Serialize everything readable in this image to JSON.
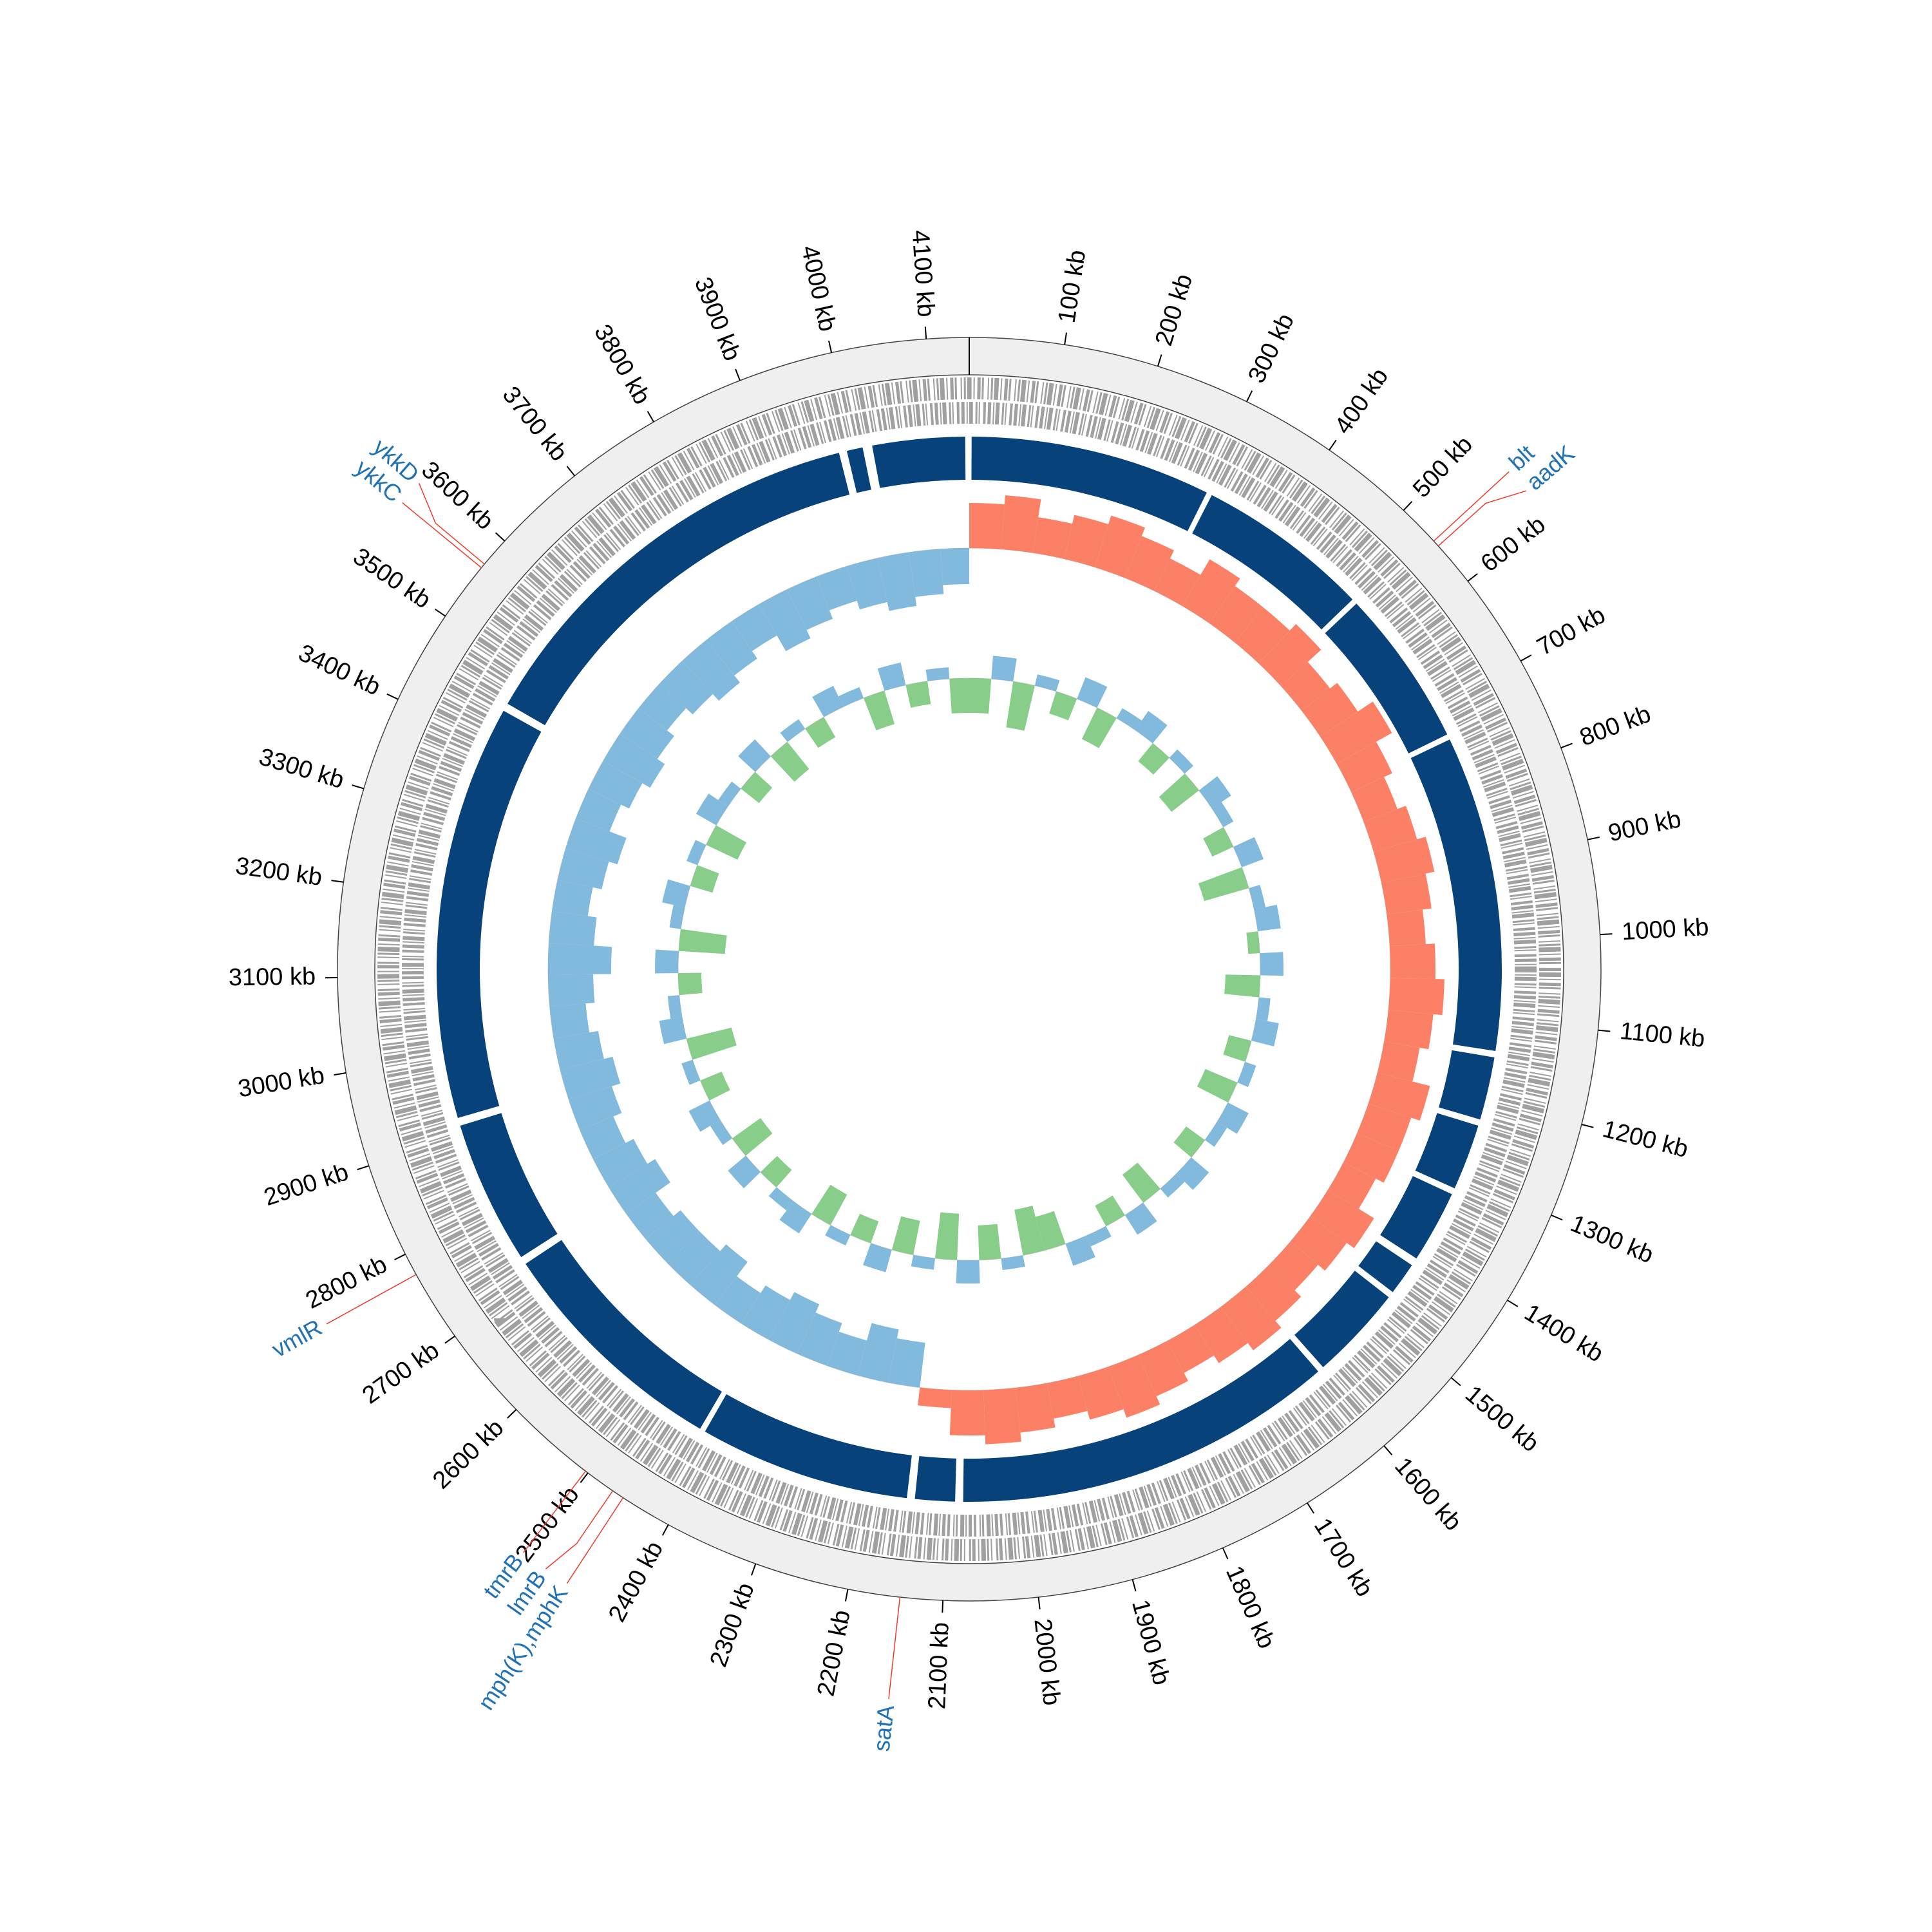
{
  "chart_data": {
    "type": "circular-genome",
    "xlim": [
      0,
      4145
    ],
    "xticks": [
      {
        "value": 100,
        "label": "100 kb"
      },
      {
        "value": 200,
        "label": "200 kb"
      },
      {
        "value": 300,
        "label": "300 kb"
      },
      {
        "value": 400,
        "label": "400 kb"
      },
      {
        "value": 500,
        "label": "500 kb"
      },
      {
        "value": 600,
        "label": "600 kb"
      },
      {
        "value": 700,
        "label": "700 kb"
      },
      {
        "value": 800,
        "label": "800 kb"
      },
      {
        "value": 900,
        "label": "900 kb"
      },
      {
        "value": 1000,
        "label": "1000 kb"
      },
      {
        "value": 1100,
        "label": "1100 kb"
      },
      {
        "value": 1200,
        "label": "1200 kb"
      },
      {
        "value": 1300,
        "label": "1300 kb"
      },
      {
        "value": 1400,
        "label": "1400 kb"
      },
      {
        "value": 1500,
        "label": "1500 kb"
      },
      {
        "value": 1600,
        "label": "1600 kb"
      },
      {
        "value": 1700,
        "label": "1700 kb"
      },
      {
        "value": 1800,
        "label": "1800 kb"
      },
      {
        "value": 1900,
        "label": "1900 kb"
      },
      {
        "value": 2000,
        "label": "2000 kb"
      },
      {
        "value": 2100,
        "label": "2100 kb"
      },
      {
        "value": 2200,
        "label": "2200 kb"
      },
      {
        "value": 2300,
        "label": "2300 kb"
      },
      {
        "value": 2400,
        "label": "2400 kb"
      },
      {
        "value": 2500,
        "label": "2500 kb"
      },
      {
        "value": 2600,
        "label": "2600 kb"
      },
      {
        "value": 2700,
        "label": "2700 kb"
      },
      {
        "value": 2800,
        "label": "2800 kb"
      },
      {
        "value": 2900,
        "label": "2900 kb"
      },
      {
        "value": 3000,
        "label": "3000 kb"
      },
      {
        "value": 3100,
        "label": "3100 kb"
      },
      {
        "value": 3200,
        "label": "3200 kb"
      },
      {
        "value": 3300,
        "label": "3300 kb"
      },
      {
        "value": 3400,
        "label": "3400 kb"
      },
      {
        "value": 3500,
        "label": "3500 kb"
      },
      {
        "value": 3600,
        "label": "3600 kb"
      },
      {
        "value": 3700,
        "label": "3700 kb"
      },
      {
        "value": 3800,
        "label": "3800 kb"
      },
      {
        "value": 3900,
        "label": "3900 kb"
      },
      {
        "value": 4000,
        "label": "4000 kb"
      },
      {
        "value": 4100,
        "label": "4100 kb"
      }
    ],
    "blocks": {
      "color": "#08427b",
      "segments": [
        [
          3,
          305
        ],
        [
          312,
          530
        ],
        [
          537,
          735
        ],
        [
          742,
          1138
        ],
        [
          1146,
          1225
        ],
        [
          1233,
          1316
        ],
        [
          1324,
          1415
        ],
        [
          1425,
          1466
        ],
        [
          1474,
          1593
        ],
        [
          1601,
          2080
        ],
        [
          2090,
          2140
        ],
        [
          2150,
          2415
        ],
        [
          2422,
          2722
        ],
        [
          2732,
          2912
        ],
        [
          2922,
          3443
        ],
        [
          3453,
          3982
        ],
        [
          3992,
          4012
        ],
        [
          4024,
          4140
        ]
      ]
    },
    "gc_skew": {
      "positive_color": "#fb6a4a",
      "negative_color": "#6baed6",
      "x": [
        0,
        50,
        100,
        150,
        200,
        250,
        300,
        350,
        400,
        450,
        500,
        550,
        600,
        650,
        700,
        750,
        800,
        850,
        900,
        950,
        1000,
        1050,
        1100,
        1150,
        1200,
        1250,
        1300,
        1350,
        1400,
        1450,
        1500,
        1550,
        1600,
        1650,
        1700,
        1750,
        1800,
        1850,
        1900,
        1950,
        2000,
        2050,
        2100,
        2150,
        2200,
        2250,
        2300,
        2350,
        2400,
        2450,
        2500,
        2550,
        2600,
        2650,
        2700,
        2750,
        2800,
        2850,
        2900,
        2950,
        3000,
        3050,
        3100,
        3150,
        3200,
        3250,
        3300,
        3350,
        3400,
        3450,
        3500,
        3550,
        3600,
        3650,
        3700,
        3750,
        3800,
        3850,
        3900,
        3950,
        4000,
        4050,
        4100
      ],
      "values": [
        0.05,
        0.06,
        0.04,
        0.05,
        0.06,
        0.05,
        0.04,
        0.06,
        0.05,
        0.05,
        0.06,
        0.04,
        0.05,
        0.07,
        0.05,
        0.04,
        0.05,
        0.06,
        0.05,
        0.04,
        0.05,
        0.06,
        0.05,
        0.04,
        0.06,
        0.05,
        0.05,
        0.04,
        0.06,
        0.05,
        0.04,
        0.05,
        0.06,
        0.05,
        0.04,
        0.05,
        0.06,
        0.05,
        0.04,
        0.05,
        0.06,
        0.05,
        0.02,
        -0.05,
        -0.06,
        -0.04,
        -0.05,
        -0.06,
        -0.05,
        -0.04,
        -0.06,
        -0.05,
        -0.05,
        -0.04,
        -0.06,
        -0.05,
        -0.04,
        -0.05,
        -0.06,
        -0.05,
        -0.04,
        -0.05,
        -0.07,
        -0.05,
        -0.04,
        -0.05,
        -0.06,
        -0.04,
        -0.05,
        -0.06,
        -0.05,
        -0.04,
        -0.05,
        -0.06,
        -0.05,
        -0.04,
        -0.06,
        -0.05,
        -0.04,
        -0.05,
        -0.06,
        -0.05,
        -0.04
      ]
    },
    "gc_content": {
      "positive_color": "#6baed6",
      "negative_color": "#74c476",
      "x": [
        0,
        50,
        100,
        150,
        200,
        250,
        300,
        350,
        400,
        450,
        500,
        550,
        600,
        650,
        700,
        750,
        800,
        850,
        900,
        950,
        1000,
        1050,
        1100,
        1150,
        1200,
        1250,
        1300,
        1350,
        1400,
        1450,
        1500,
        1550,
        1600,
        1650,
        1700,
        1750,
        1800,
        1850,
        1900,
        1950,
        2000,
        2050,
        2100,
        2150,
        2200,
        2250,
        2300,
        2350,
        2400,
        2450,
        2500,
        2550,
        2600,
        2650,
        2700,
        2750,
        2800,
        2850,
        2900,
        2950,
        3000,
        3050,
        3100,
        3150,
        3200,
        3250,
        3300,
        3350,
        3400,
        3450,
        3500,
        3550,
        3600,
        3650,
        3700,
        3750,
        3800,
        3850,
        3900,
        3950,
        4000,
        4050,
        4100
      ],
      "values": [
        -0.03,
        0.02,
        -0.04,
        0.01,
        -0.02,
        0.02,
        -0.03,
        0.01,
        0.02,
        -0.02,
        0.01,
        -0.03,
        0.02,
        0.01,
        -0.02,
        0.02,
        -0.04,
        0.01,
        0.02,
        -0.01,
        0.02,
        -0.03,
        0.01,
        0.02,
        -0.02,
        0.01,
        -0.03,
        0.02,
        0.01,
        -0.02,
        0.02,
        0.01,
        -0.03,
        0.02,
        -0.02,
        0.01,
        0.02,
        -0.03,
        -0.04,
        0.01,
        -0.03,
        0.02,
        -0.04,
        0.01,
        -0.03,
        0.02,
        -0.02,
        0.01,
        -0.03,
        0.02,
        0.01,
        -0.02,
        0.02,
        -0.03,
        0.01,
        0.02,
        -0.02,
        0.01,
        -0.04,
        0.02,
        0.01,
        -0.02,
        0.02,
        -0.04,
        0.01,
        0.02,
        -0.02,
        0.01,
        -0.03,
        0.02,
        0.01,
        -0.02,
        0.02,
        -0.03,
        0.01,
        -0.02,
        0.02,
        0.01,
        -0.03,
        0.02,
        -0.02,
        0.01,
        -0.03
      ]
    },
    "genes": {
      "label_color": "#2171b5",
      "line_color": "#ef3b2c",
      "items": [
        {
          "name": "blt",
          "position": 545
        },
        {
          "name": "aadK",
          "position": 552
        },
        {
          "name": "satA",
          "position": 2145
        },
        {
          "name": "mph(K),mphK",
          "position": 2455
        },
        {
          "name": "lmrB",
          "position": 2468
        },
        {
          "name": "tmrB",
          "position": 2503
        },
        {
          "name": "vmlR",
          "position": 2776
        },
        {
          "name": "ykkC",
          "position": 3563
        },
        {
          "name": "ykkD",
          "position": 3568
        }
      ]
    }
  }
}
